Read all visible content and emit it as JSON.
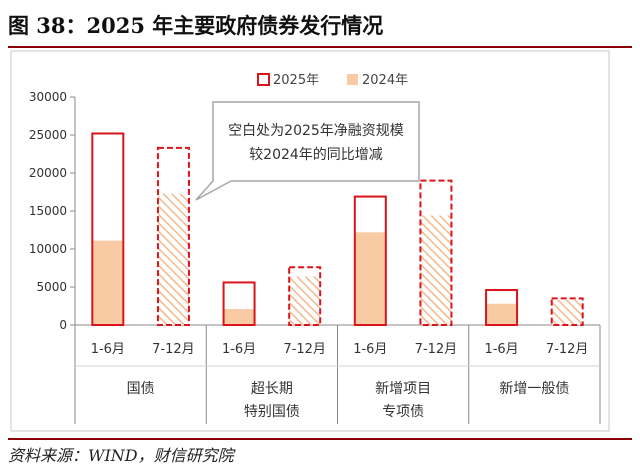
{
  "figure_title": "图 38：2025 年主要政府债券发行情况",
  "source_note": "资料来源：WIND，财信研究院",
  "chart_data": {
    "type": "bar",
    "legend": {
      "position": "top-center",
      "items": [
        "2025年",
        "2024年"
      ]
    },
    "series": [
      {
        "name": "2025年",
        "values": [
          25200,
          23300,
          5600,
          7600,
          16900,
          19000,
          4600,
          3500
        ],
        "color": "#d9141a",
        "style": "outline"
      },
      {
        "name": "2024年",
        "values": [
          11100,
          17300,
          2100,
          6400,
          12200,
          14400,
          2800,
          3300
        ],
        "color": "#f8cba5",
        "style": "fill"
      }
    ],
    "subcategories": [
      "1-6月",
      "7-12月",
      "1-6月",
      "7-12月",
      "1-6月",
      "7-12月",
      "1-6月",
      "7-12月"
    ],
    "groups": [
      {
        "label": [
          "国债"
        ]
      },
      {
        "label": [
          "超长期",
          "特别国债"
        ]
      },
      {
        "label": [
          "新增项目",
          "专项债"
        ]
      },
      {
        "label": [
          "新增一般债"
        ]
      }
    ],
    "projected_half": "7-12月",
    "y_ticks": [
      0,
      5000,
      10000,
      15000,
      20000,
      25000,
      30000
    ],
    "ylim": [
      0,
      30000
    ],
    "grid": false,
    "annotation": [
      "空白处为2025年净融资规模",
      "较2024年的同比增减"
    ]
  }
}
